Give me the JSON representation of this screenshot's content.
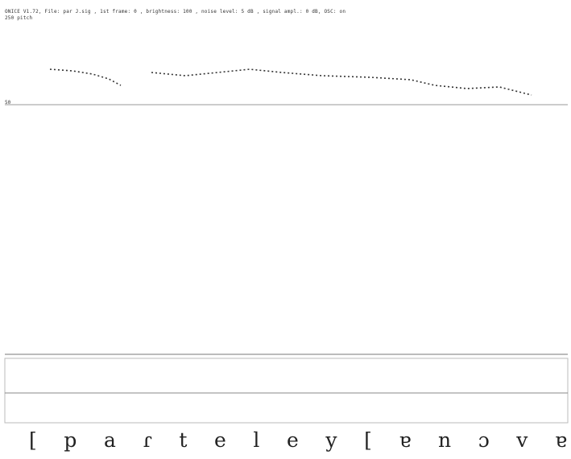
{
  "header": {
    "info": "ONICE V1.72, File: par J.sig , 1st frame: 0 , brightness: 100 , noise level: 5 dB , signal ampl.: 0 dB, OSC: on",
    "pitch_label": "250   pitch",
    "scale_label": "50"
  },
  "transcription": [
    "[",
    "p",
    "a",
    "ɾ",
    "t",
    "e",
    "l",
    "e",
    "y",
    "[",
    "ɐ",
    "n",
    "ɔ",
    "v",
    "ɐ"
  ]
}
